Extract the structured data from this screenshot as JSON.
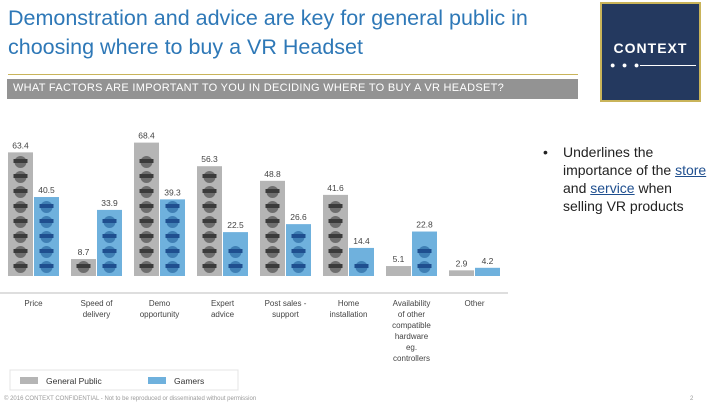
{
  "header": {
    "title": "Demonstration and advice are key for general public in choosing where to buy a VR Headset"
  },
  "logo": {
    "text": "CONTEXT"
  },
  "banner": {
    "question": "WHAT FACTORS ARE IMPORTANT TO YOU IN DECIDING WHERE TO BUY A VR HEADSET?"
  },
  "note": {
    "bullet": "•",
    "text_before": "Underlines the importance of the ",
    "link_store": "store",
    "text_and": " and ",
    "link_service": "service",
    "text_after": " when selling VR products"
  },
  "footer": {
    "confidential": "© 2016 CONTEXT CONFIDENTIAL - Not to be reproduced or disseminated without permission",
    "page_number": "2"
  },
  "colors": {
    "title": "#2e78b7",
    "logo_bg": "#24395f",
    "logo_border": "#c9b45a",
    "banner_bg": "#939393",
    "general_public": "#b5b5b5",
    "gamers": "#6fb1dd"
  },
  "chart_data": {
    "type": "bar",
    "title": "",
    "xlabel": "",
    "ylabel": "",
    "ylim": [
      0,
      70
    ],
    "grid": false,
    "legend_position": "bottom-left",
    "categories": [
      "Price",
      "Speed of delivery",
      "Demo opportunity",
      "Expert advice",
      "Post sales - support",
      "Home installation",
      "Availability of other compatible hardware eg. controllers",
      "Other"
    ],
    "category_lines": [
      [
        "Price"
      ],
      [
        "Speed of",
        "delivery"
      ],
      [
        "Demo",
        "opportunity"
      ],
      [
        "Expert",
        "advice"
      ],
      [
        "Post sales -",
        "support"
      ],
      [
        "Home",
        "installation"
      ],
      [
        "Availability",
        "of other",
        "compatible",
        "hardware",
        "eg.",
        "controllers"
      ],
      [
        "Other"
      ]
    ],
    "series": [
      {
        "name": "General Public",
        "color": "#b5b5b5",
        "values": [
          63.4,
          8.7,
          68.4,
          56.3,
          48.8,
          41.6,
          5.1,
          2.9
        ],
        "labels": [
          "63.4",
          "8.7",
          "68.4",
          "56.3",
          "48.8",
          "41.6",
          "5.1",
          "2.9"
        ]
      },
      {
        "name": "Gamers",
        "color": "#6fb1dd",
        "values": [
          40.5,
          33.9,
          39.3,
          22.5,
          26.6,
          14.4,
          22.8,
          4.2
        ],
        "labels": [
          "40.5",
          "33.9",
          "39.3",
          "22.5",
          "26.6",
          "14.4",
          "22.8",
          "4.2"
        ]
      }
    ]
  }
}
